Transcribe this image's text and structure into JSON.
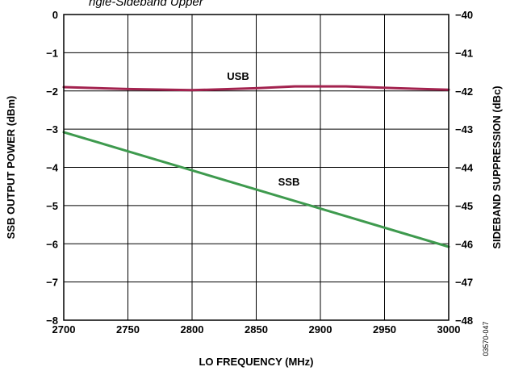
{
  "caption": "ngle-Sideband Upper",
  "figure_id": "03570-047",
  "chart_data": {
    "type": "line",
    "xlabel": "LO FREQUENCY (MHz)",
    "ylabel": "SSB OUTPUT POWER (dBm)",
    "y2label": "SIDEBAND SUPPRESSION (dBc)",
    "xlim": [
      2700,
      3000
    ],
    "ylim": [
      -8,
      0
    ],
    "y2lim": [
      -48,
      -40
    ],
    "grid": true,
    "x_ticks": [
      2700,
      2750,
      2800,
      2850,
      2900,
      2950,
      3000
    ],
    "y_ticks": [
      0,
      -1,
      -2,
      -3,
      -4,
      -5,
      -6,
      -7,
      -8
    ],
    "y2_ticks": [
      -40,
      -41,
      -42,
      -43,
      -44,
      -45,
      -46,
      -47,
      -48
    ],
    "y_tick_labels": [
      "0",
      "−1",
      "−2",
      "−3",
      "−4",
      "−5",
      "−6",
      "−7",
      "−8"
    ],
    "y2_tick_labels": [
      "−40",
      "−41",
      "−42",
      "−43",
      "−44",
      "−45",
      "−46",
      "−47",
      "−48"
    ],
    "series": [
      {
        "name": "USB",
        "axis": "right",
        "color": "#a3234f",
        "x": [
          2700,
          2750,
          2800,
          2850,
          2880,
          2920,
          2960,
          3000
        ],
        "y": [
          -41.9,
          -41.95,
          -41.98,
          -41.93,
          -41.88,
          -41.88,
          -41.93,
          -41.97
        ]
      },
      {
        "name": "SSB",
        "axis": "left",
        "color": "#3e9a4e",
        "x": [
          2700,
          3000
        ],
        "y": [
          -3.08,
          -6.08
        ]
      }
    ]
  }
}
